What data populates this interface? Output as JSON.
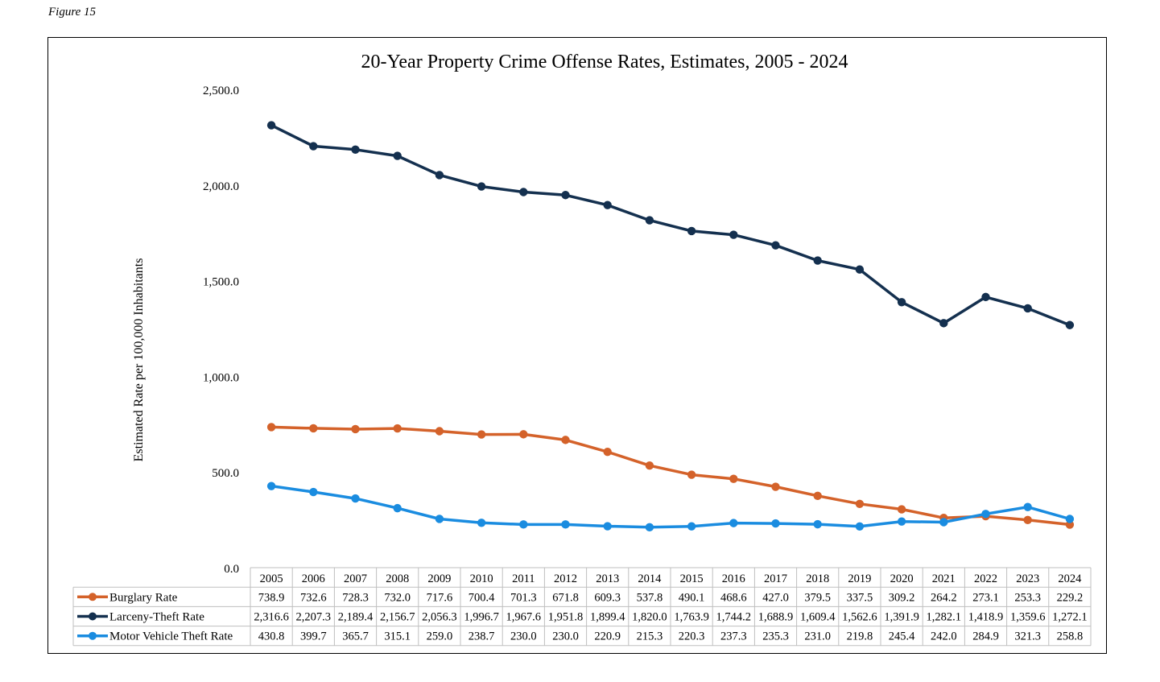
{
  "figure_label": "Figure 15",
  "colors": {
    "burglary": "#d4622a",
    "larceny": "#14304f",
    "motor_vehicle": "#1a8ce0",
    "grid": "#bfbfbf"
  },
  "chart_data": {
    "type": "line",
    "title": "20-Year Property Crime Offense Rates, Estimates, 2005 - 2024",
    "xlabel": "",
    "ylabel": "Estimated Rate per 100,000 Inhabitants",
    "ylim": [
      0,
      2500
    ],
    "yticks": [
      0,
      500,
      1000,
      1500,
      2000,
      2500
    ],
    "ytick_labels": [
      "0.0",
      "500.0",
      "1,000.0",
      "1,500.0",
      "2,000.0",
      "2,500.0"
    ],
    "grid": false,
    "legend": "data-table-below",
    "categories": [
      "2005",
      "2006",
      "2007",
      "2008",
      "2009",
      "2010",
      "2011",
      "2012",
      "2013",
      "2014",
      "2015",
      "2016",
      "2017",
      "2018",
      "2019",
      "2020",
      "2021",
      "2022",
      "2023",
      "2024"
    ],
    "series": [
      {
        "key": "burglary",
        "name": "Burglary Rate",
        "values": [
          738.9,
          732.6,
          728.3,
          732.0,
          717.6,
          700.4,
          701.3,
          671.8,
          609.3,
          537.8,
          490.1,
          468.6,
          427.0,
          379.5,
          337.5,
          309.2,
          264.2,
          273.1,
          253.3,
          229.2
        ],
        "labels": [
          "738.9",
          "732.6",
          "728.3",
          "732.0",
          "717.6",
          "700.4",
          "701.3",
          "671.8",
          "609.3",
          "537.8",
          "490.1",
          "468.6",
          "427.0",
          "379.5",
          "337.5",
          "309.2",
          "264.2",
          "273.1",
          "253.3",
          "229.2"
        ]
      },
      {
        "key": "larceny",
        "name": "Larceny-Theft Rate",
        "values": [
          2316.6,
          2207.3,
          2189.4,
          2156.7,
          2056.3,
          1996.7,
          1967.6,
          1951.8,
          1899.4,
          1820.0,
          1763.9,
          1744.2,
          1688.9,
          1609.4,
          1562.6,
          1391.9,
          1282.1,
          1418.9,
          1359.6,
          1272.1
        ],
        "labels": [
          "2,316.6",
          "2,207.3",
          "2,189.4",
          "2,156.7",
          "2,056.3",
          "1,996.7",
          "1,967.6",
          "1,951.8",
          "1,899.4",
          "1,820.0",
          "1,763.9",
          "1,744.2",
          "1,688.9",
          "1,609.4",
          "1,562.6",
          "1,391.9",
          "1,282.1",
          "1,418.9",
          "1,359.6",
          "1,272.1"
        ]
      },
      {
        "key": "motor_vehicle",
        "name": "Motor Vehicle Theft Rate",
        "values": [
          430.8,
          399.7,
          365.7,
          315.1,
          259.0,
          238.7,
          230.0,
          230.0,
          220.9,
          215.3,
          220.3,
          237.3,
          235.3,
          231.0,
          219.8,
          245.4,
          242.0,
          284.9,
          321.3,
          258.8
        ],
        "labels": [
          "430.8",
          "399.7",
          "365.7",
          "315.1",
          "259.0",
          "238.7",
          "230.0",
          "230.0",
          "220.9",
          "215.3",
          "220.3",
          "237.3",
          "235.3",
          "231.0",
          "219.8",
          "245.4",
          "242.0",
          "284.9",
          "321.3",
          "258.8"
        ]
      }
    ]
  }
}
